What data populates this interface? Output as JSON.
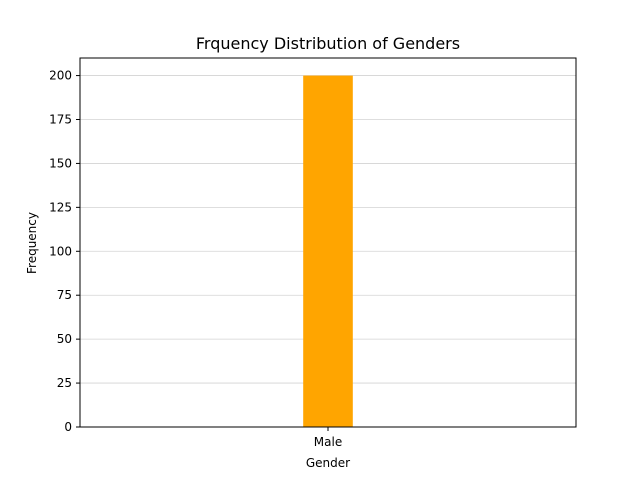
{
  "chart_data": {
    "type": "bar",
    "title": "Frquency Distribution of Genders",
    "xlabel": "Gender",
    "ylabel": "Frequency",
    "categories": [
      "Male"
    ],
    "values": [
      200
    ],
    "ylim": [
      0,
      210
    ],
    "yticks": [
      0,
      25,
      50,
      75,
      100,
      125,
      150,
      175,
      200
    ],
    "grid": "y",
    "bar_color": "#ffa500",
    "grid_color": "#d3d3d3"
  }
}
